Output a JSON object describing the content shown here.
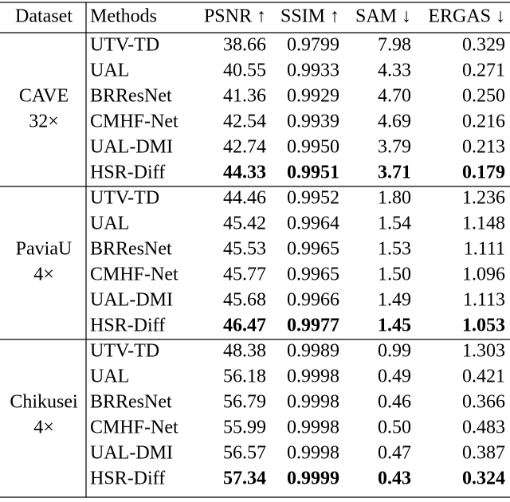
{
  "header": [
    "Dataset",
    "Methods",
    "PSNR ↑",
    "SSIM ↑",
    "SAM ↓",
    "ERGAS ↓"
  ],
  "groups": [
    {
      "dataset": "CAVE",
      "scale": "32×",
      "rows": [
        [
          "UTV-TD",
          "38.66",
          "0.9799",
          "7.98",
          "0.329"
        ],
        [
          "UAL",
          "40.55",
          "0.9933",
          "4.33",
          "0.271"
        ],
        [
          "BRResNet",
          "41.36",
          "0.9929",
          "4.70",
          "0.250"
        ],
        [
          "CMHF-Net",
          "42.54",
          "0.9939",
          "4.69",
          "0.216"
        ],
        [
          "UAL-DMI",
          "42.74",
          "0.9950",
          "3.79",
          "0.213"
        ],
        [
          "HSR-Diff",
          "44.33",
          "0.9951",
          "3.71",
          "0.179"
        ]
      ]
    },
    {
      "dataset": "PaviaU",
      "scale": "4×",
      "rows": [
        [
          "UTV-TD",
          "44.46",
          "0.9952",
          "1.80",
          "1.236"
        ],
        [
          "UAL",
          "45.42",
          "0.9964",
          "1.54",
          "1.148"
        ],
        [
          "BRResNet",
          "45.53",
          "0.9965",
          "1.53",
          "1.111"
        ],
        [
          "CMHF-Net",
          "45.77",
          "0.9965",
          "1.50",
          "1.096"
        ],
        [
          "UAL-DMI",
          "45.68",
          "0.9966",
          "1.49",
          "1.113"
        ],
        [
          "HSR-Diff",
          "46.47",
          "0.9977",
          "1.45",
          "1.053"
        ]
      ]
    },
    {
      "dataset": "Chikusei",
      "scale": "4×",
      "rows": [
        [
          "UTV-TD",
          "48.38",
          "0.9989",
          "0.99",
          "1.303"
        ],
        [
          "UAL",
          "56.18",
          "0.9998",
          "0.49",
          "0.421"
        ],
        [
          "BRResNet",
          "56.79",
          "0.9998",
          "0.46",
          "0.366"
        ],
        [
          "CMHF-Net",
          "55.99",
          "0.9998",
          "0.50",
          "0.483"
        ],
        [
          "UAL-DMI",
          "56.57",
          "0.9998",
          "0.47",
          "0.387"
        ],
        [
          "HSR-Diff",
          "57.34",
          "0.9999",
          "0.43",
          "0.324"
        ]
      ]
    }
  ]
}
